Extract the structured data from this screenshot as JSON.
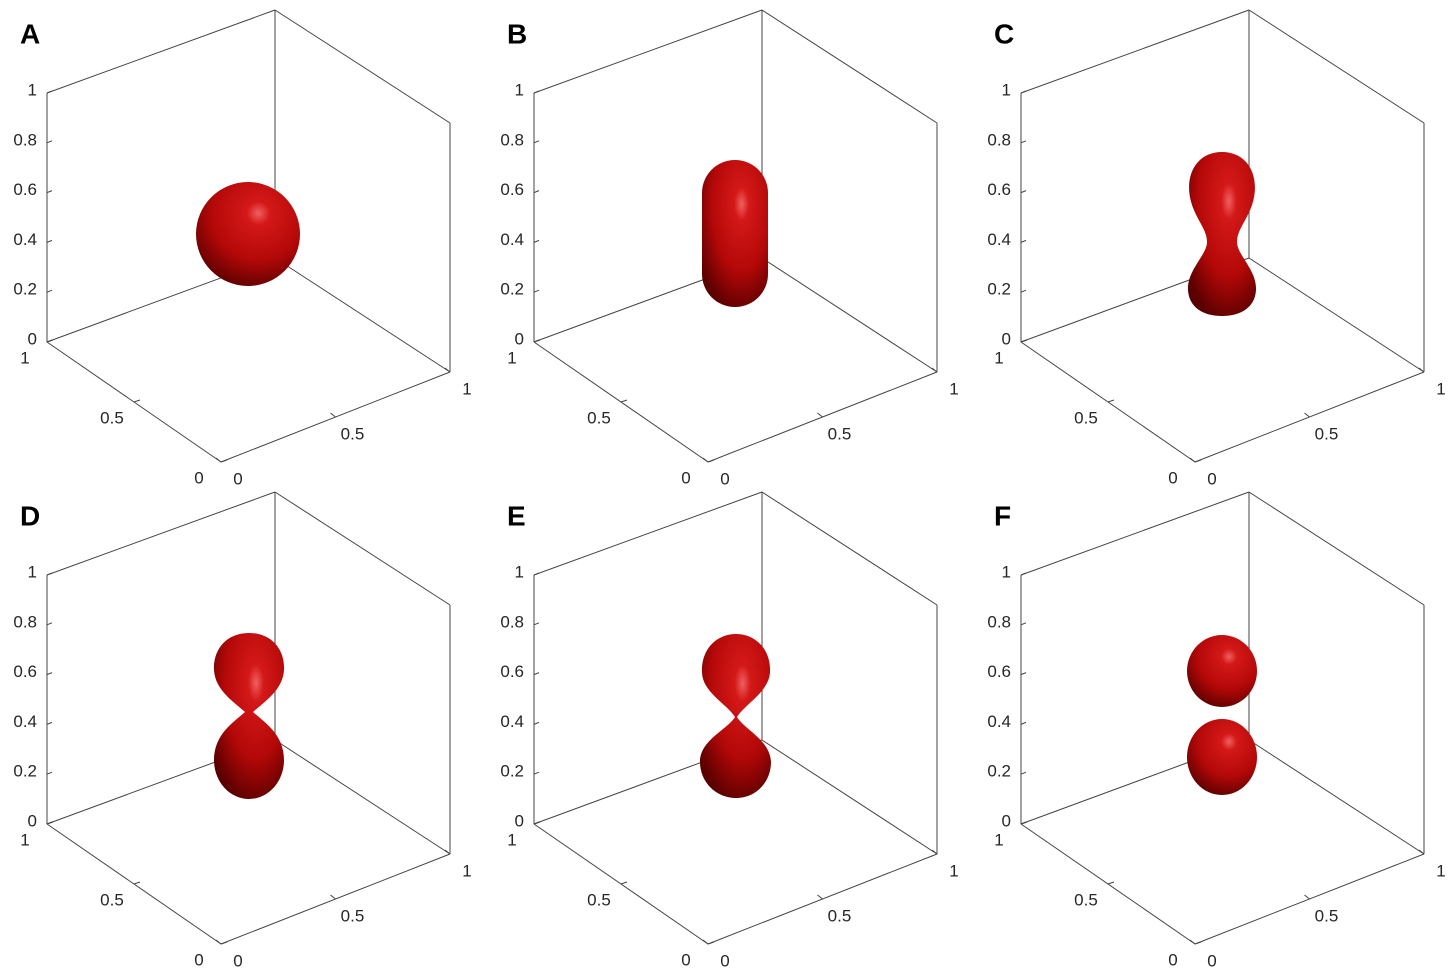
{
  "panels": [
    {
      "label": "A",
      "zticks": [
        0,
        0.2,
        0.4,
        0.6,
        0.8,
        1
      ],
      "yticks": [
        0,
        0.5,
        1
      ],
      "xticks": [
        0,
        0.5,
        1
      ]
    },
    {
      "label": "B",
      "zticks": [
        0,
        0.2,
        0.4,
        0.6,
        0.8,
        1
      ],
      "yticks": [
        0,
        0.5,
        1
      ],
      "xticks": [
        0,
        0.5,
        1
      ]
    },
    {
      "label": "C",
      "zticks": [
        0,
        0.2,
        0.4,
        0.6,
        0.8,
        1
      ],
      "yticks": [
        0,
        0.5,
        1
      ],
      "xticks": [
        0,
        0.5,
        1
      ]
    },
    {
      "label": "D",
      "zticks": [
        0,
        0.2,
        0.4,
        0.6,
        0.8,
        1
      ],
      "yticks": [
        0,
        0.5,
        1
      ],
      "xticks": [
        0,
        0.5,
        1
      ]
    },
    {
      "label": "E",
      "zticks": [
        0,
        0.2,
        0.4,
        0.6,
        0.8,
        1
      ],
      "yticks": [
        0,
        0.5,
        1
      ],
      "xticks": [
        0,
        0.5,
        1
      ]
    },
    {
      "label": "F",
      "zticks": [
        0,
        0.2,
        0.4,
        0.6,
        0.8,
        1
      ],
      "yticks": [
        0,
        0.5,
        1
      ],
      "xticks": [
        0,
        0.5,
        1
      ]
    }
  ]
}
